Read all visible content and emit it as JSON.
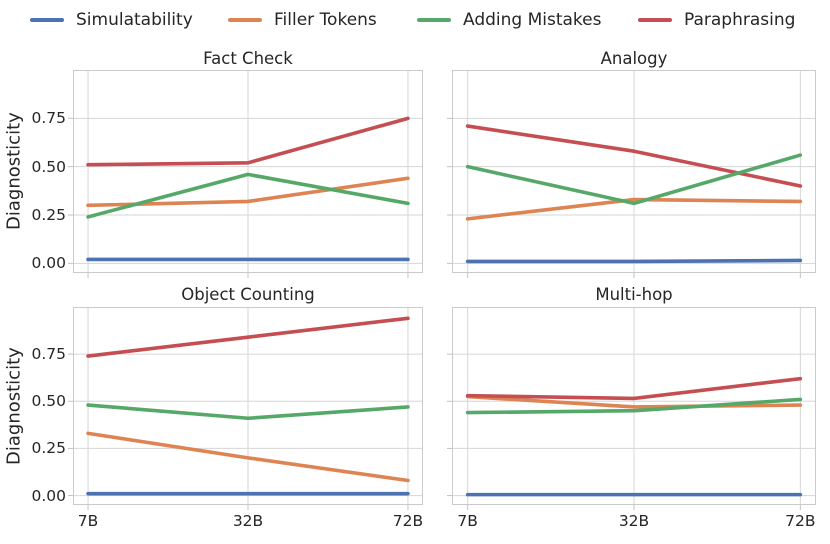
{
  "figure": {
    "text_color": "#262626",
    "grid_color": "#D6D6D6",
    "spine_color": "#CACACA",
    "tick_color": "#C2C2C2",
    "background": "#FFFFFF"
  },
  "legend": {
    "items": [
      {
        "label": "Simulatability",
        "color": "#4C72B0"
      },
      {
        "label": "Filler Tokens",
        "color": "#DD8452"
      },
      {
        "label": "Adding Mistakes",
        "color": "#55A868"
      },
      {
        "label": "Paraphrasing",
        "color": "#C44E52"
      }
    ]
  },
  "chart_data": [
    {
      "type": "line",
      "title": "Fact Check",
      "ylabel": "Diagnosticity",
      "x": [
        "7B",
        "32B",
        "72B"
      ],
      "yticks": [
        0,
        0.25,
        0.5,
        0.75
      ],
      "ylim": [
        -0.05,
        1.0
      ],
      "grid": true,
      "series": [
        {
          "name": "Simulatability",
          "color": "#4C72B0",
          "values": [
            0.02,
            0.02,
            0.02
          ]
        },
        {
          "name": "Filler Tokens",
          "color": "#DD8452",
          "values": [
            0.3,
            0.32,
            0.44
          ]
        },
        {
          "name": "Adding Mistakes",
          "color": "#55A868",
          "values": [
            0.24,
            0.46,
            0.31
          ]
        },
        {
          "name": "Paraphrasing",
          "color": "#C44E52",
          "values": [
            0.51,
            0.52,
            0.75
          ]
        }
      ]
    },
    {
      "type": "line",
      "title": "Analogy",
      "ylabel": "Diagnosticity",
      "x": [
        "7B",
        "32B",
        "72B"
      ],
      "yticks": [
        0,
        0.25,
        0.5,
        0.75
      ],
      "ylim": [
        -0.05,
        1.0
      ],
      "grid": true,
      "series": [
        {
          "name": "Simulatability",
          "color": "#4C72B0",
          "values": [
            0.01,
            0.01,
            0.015
          ]
        },
        {
          "name": "Filler Tokens",
          "color": "#DD8452",
          "values": [
            0.23,
            0.33,
            0.32
          ]
        },
        {
          "name": "Adding Mistakes",
          "color": "#55A868",
          "values": [
            0.5,
            0.31,
            0.56
          ]
        },
        {
          "name": "Paraphrasing",
          "color": "#C44E52",
          "values": [
            0.71,
            0.58,
            0.4
          ]
        }
      ]
    },
    {
      "type": "line",
      "title": "Object Counting",
      "ylabel": "Diagnosticity",
      "x": [
        "7B",
        "32B",
        "72B"
      ],
      "yticks": [
        0,
        0.25,
        0.5,
        0.75
      ],
      "ylim": [
        -0.05,
        1.0
      ],
      "grid": true,
      "series": [
        {
          "name": "Simulatability",
          "color": "#4C72B0",
          "values": [
            0.01,
            0.01,
            0.01
          ]
        },
        {
          "name": "Filler Tokens",
          "color": "#DD8452",
          "values": [
            0.33,
            0.2,
            0.08
          ]
        },
        {
          "name": "Adding Mistakes",
          "color": "#55A868",
          "values": [
            0.48,
            0.41,
            0.47
          ]
        },
        {
          "name": "Paraphrasing",
          "color": "#C44E52",
          "values": [
            0.74,
            0.84,
            0.94
          ]
        }
      ]
    },
    {
      "type": "line",
      "title": "Multi-hop",
      "ylabel": "Diagnosticity",
      "x": [
        "7B",
        "32B",
        "72B"
      ],
      "yticks": [
        0,
        0.25,
        0.5,
        0.75
      ],
      "ylim": [
        -0.05,
        1.0
      ],
      "grid": true,
      "series": [
        {
          "name": "Simulatability",
          "color": "#4C72B0",
          "values": [
            0.005,
            0.005,
            0.005
          ]
        },
        {
          "name": "Filler Tokens",
          "color": "#DD8452",
          "values": [
            0.525,
            0.47,
            0.48
          ]
        },
        {
          "name": "Adding Mistakes",
          "color": "#55A868",
          "values": [
            0.44,
            0.45,
            0.51
          ]
        },
        {
          "name": "Paraphrasing",
          "color": "#C44E52",
          "values": [
            0.53,
            0.515,
            0.62
          ]
        }
      ]
    }
  ]
}
